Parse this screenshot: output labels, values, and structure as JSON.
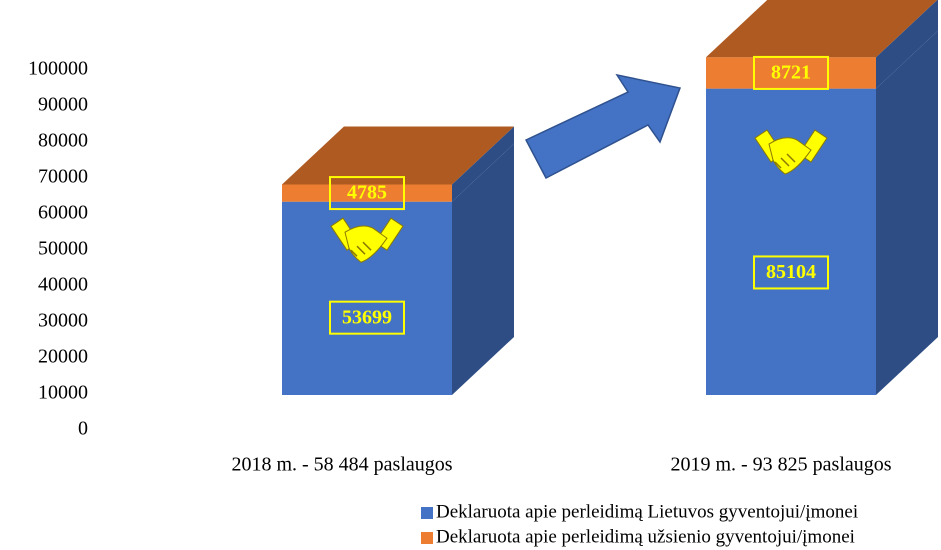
{
  "chart_data": {
    "type": "bar3d_stacked",
    "categories": [
      "2018 m. - 58 484 paslaugos",
      "2019 m. - 93 825 paslaugos"
    ],
    "series": [
      {
        "name": "Deklaruota apie perleidimą Lietuvos gyventojui/įmonei",
        "color": "#4472c4",
        "values": [
          53699,
          85104
        ]
      },
      {
        "name": "Deklaruota apie perleidimą užsienio gyventojui/įmonei",
        "color": "#ed7d31",
        "values": [
          4785,
          8721
        ]
      }
    ],
    "ylim": [
      0,
      100000
    ],
    "yticks": [
      0,
      10000,
      20000,
      30000,
      40000,
      50000,
      60000,
      70000,
      80000,
      90000,
      100000
    ],
    "grid": false,
    "legend": "bottom-right"
  }
}
